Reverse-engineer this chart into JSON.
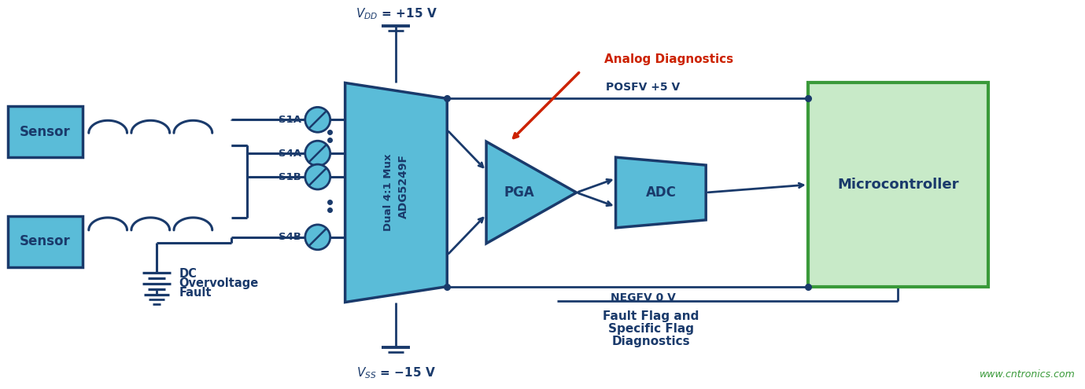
{
  "bg_color": "#ffffff",
  "dark_blue": "#1a3a6b",
  "light_blue": "#5abcd8",
  "green_fill": "#c8eac8",
  "green_border": "#3a9a3a",
  "red_arrow": "#cc2200",
  "line_color": "#1a3a6b",
  "text_color": "#1a3a6b",
  "sensor1_label": "Sensor",
  "sensor2_label": "Sensor",
  "mux_label1": "ADG5249F",
  "mux_label2": "Dual 4:1 Mux",
  "pga_label": "PGA",
  "adc_label": "ADC",
  "mc_label": "Microcontroller",
  "posfv_label": "POSFV +5 V",
  "negfv_label": "NEGFV 0 V",
  "analog_diag_label": "Analog Diagnostics",
  "fault_flag_label1": "Fault Flag and",
  "fault_flag_label2": "Specific Flag",
  "fault_flag_label3": "Diagnostics",
  "dc_label1": "DC",
  "dc_label2": "Overvoltage",
  "dc_label3": "Fault",
  "s1a": "S1A",
  "s4a": "S4A",
  "s1b": "S1B",
  "s4b": "S4B",
  "watermark": "www.cntronics.com",
  "vdd_text": "$V_{DD}$ = +15 V",
  "vss_text": "$V_{SS}$ = −15 V"
}
